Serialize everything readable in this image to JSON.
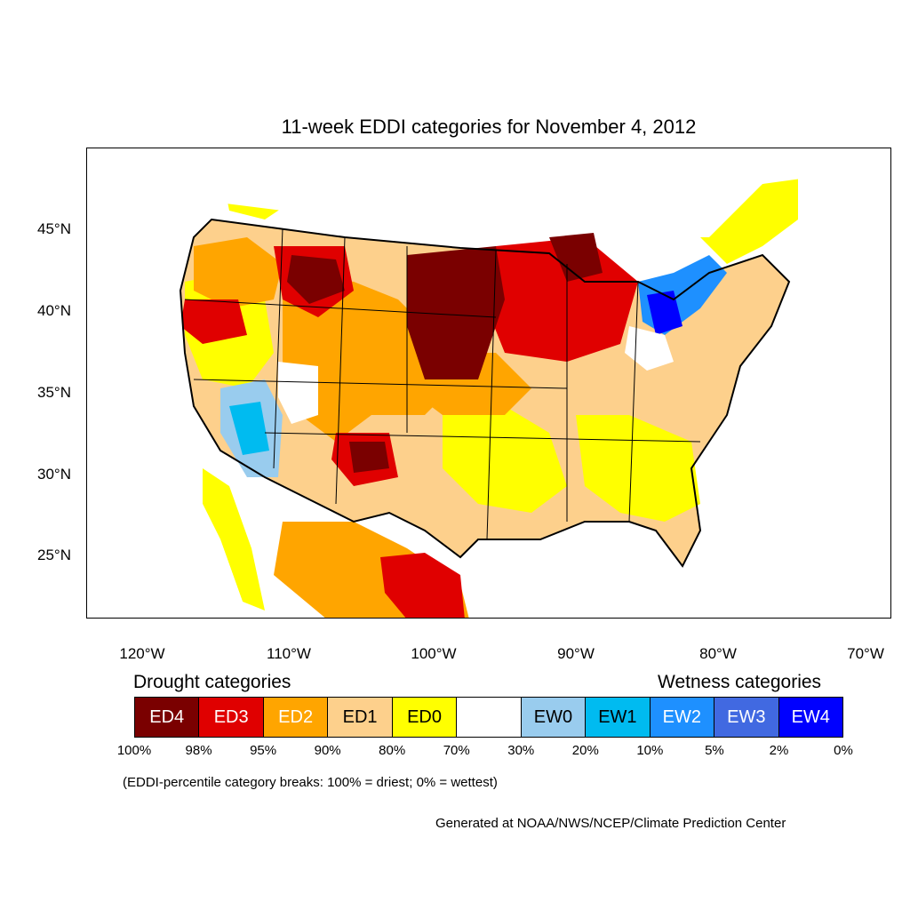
{
  "title": "11-week EDDI categories for November 4, 2012",
  "map": {
    "lat_ticks": [
      "45°N",
      "40°N",
      "35°N",
      "30°N",
      "25°N"
    ],
    "lon_ticks": [
      "120°W",
      "110°W",
      "100°W",
      "90°W",
      "80°W",
      "70°W"
    ]
  },
  "legend": {
    "drought_heading": "Drought categories",
    "wetness_heading": "Wetness categories",
    "categories": [
      {
        "label": "ED4",
        "color": "#7a0000"
      },
      {
        "label": "ED3",
        "color": "#e00000"
      },
      {
        "label": "ED2",
        "color": "#ffa500"
      },
      {
        "label": "ED1",
        "color": "#fdd08c"
      },
      {
        "label": "ED0",
        "color": "#ffff00"
      },
      {
        "label": "",
        "color": "#ffffff"
      },
      {
        "label": "EW0",
        "color": "#99ccee"
      },
      {
        "label": "EW1",
        "color": "#00bbf0"
      },
      {
        "label": "EW2",
        "color": "#1e90ff"
      },
      {
        "label": "EW3",
        "color": "#4169e1"
      },
      {
        "label": "EW4",
        "color": "#0000ff"
      }
    ],
    "breaks": [
      "100%",
      "98%",
      "95%",
      "90%",
      "80%",
      "70%",
      "30%",
      "20%",
      "10%",
      "5%",
      "2%",
      "0%"
    ]
  },
  "note": "(EDDI-percentile category breaks: 100% = driest; 0% = wettest)",
  "credit": "Generated at NOAA/NWS/NCEP/Climate Prediction Center"
}
